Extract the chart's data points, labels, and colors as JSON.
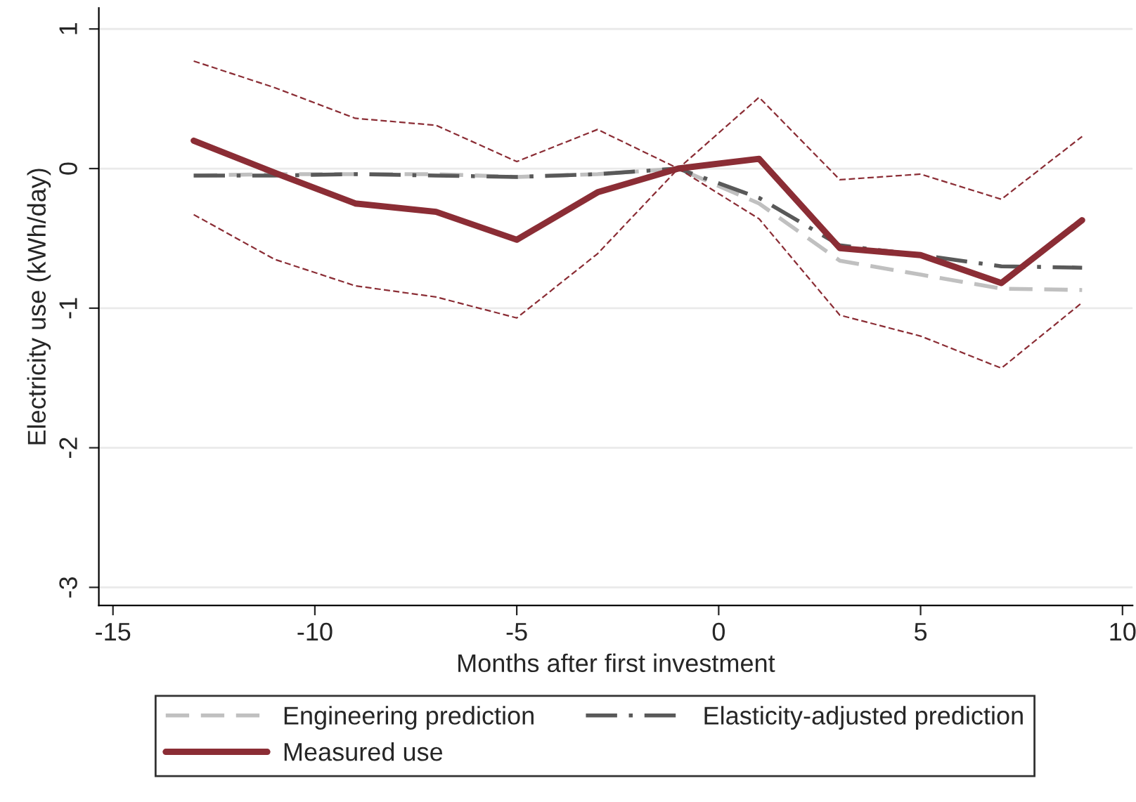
{
  "chart_data": {
    "type": "line",
    "xlabel": "Months after first investment",
    "ylabel": "Electricity use (kWh/day)",
    "x": [
      -13,
      -11,
      -9,
      -7,
      -5,
      -3,
      -1,
      1,
      3,
      5,
      7,
      9
    ],
    "series": [
      {
        "name": "Engineering prediction",
        "color": "#c0c0c0",
        "line_style": "dashed",
        "values": [
          -0.05,
          -0.04,
          -0.04,
          -0.04,
          -0.06,
          -0.04,
          0,
          -0.25,
          -0.66,
          -0.76,
          -0.86,
          -0.87
        ]
      },
      {
        "name": "Elasticity-adjusted prediction",
        "color": "#595959",
        "line_style": "dashdot",
        "values": [
          -0.05,
          -0.05,
          -0.04,
          -0.05,
          -0.06,
          -0.04,
          0,
          -0.21,
          -0.55,
          -0.62,
          -0.7,
          -0.71
        ]
      },
      {
        "name": "Measured use",
        "color": "#8b2d35",
        "line_style": "solid",
        "values": [
          0.2,
          -0.03,
          -0.25,
          -0.31,
          -0.51,
          -0.17,
          0,
          0.07,
          -0.57,
          -0.62,
          -0.82,
          -0.37
        ]
      },
      {
        "color": "#8b2d35",
        "line_style": "dashed",
        "values": [
          0.77,
          0.58,
          0.36,
          0.31,
          0.05,
          0.28,
          0,
          0.51,
          -0.08,
          -0.04,
          -0.22,
          0.23
        ]
      },
      {
        "color": "#8b2d35",
        "line_style": "dashed",
        "values": [
          -0.33,
          -0.65,
          -0.84,
          -0.92,
          -1.07,
          -0.61,
          0,
          -0.36,
          -1.05,
          -1.2,
          -1.43,
          -0.96
        ]
      }
    ],
    "xlim": [
      -15.35,
      10.25
    ],
    "ylim": [
      -3.13,
      1.15
    ],
    "xticks": [
      {
        "value": -15,
        "label": "-15"
      },
      {
        "value": -10,
        "label": "-10"
      },
      {
        "value": -5,
        "label": "-5"
      },
      0,
      5,
      10
    ],
    "yticks": [
      {
        "value": -3,
        "label": "-3"
      },
      {
        "value": -2,
        "label": "-2"
      },
      {
        "value": -1,
        "label": "-1"
      },
      0,
      1
    ],
    "grid": "y",
    "legend": "bottom"
  }
}
